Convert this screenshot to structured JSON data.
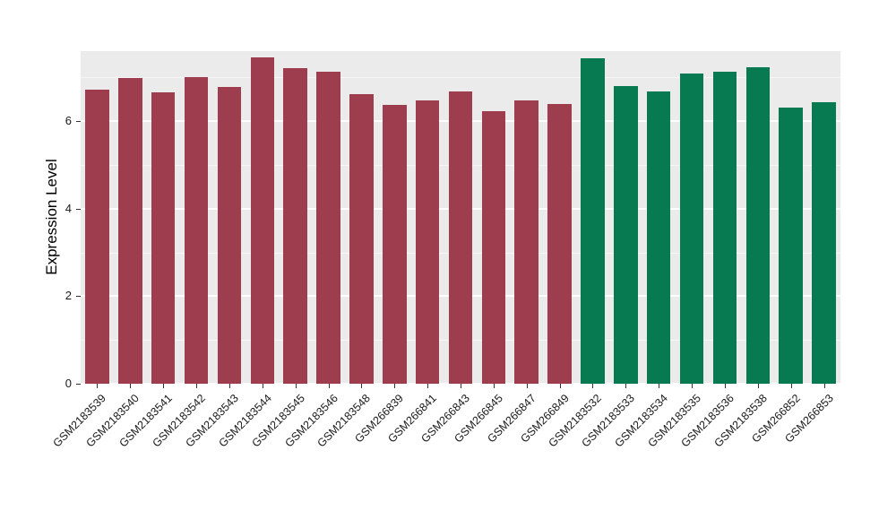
{
  "figure": {
    "background": "#FFFFFF",
    "plot_background": "#EBEBEB",
    "grid_major_color": "#FFFFFF",
    "grid_minor_color": "rgba(255,255,255,0.55)",
    "axis_text_color": "#1A1A1A",
    "tick_mark_color": "#333333",
    "red_group_color": "#9E3D4E",
    "green_group_color": "#087A52"
  },
  "chart_data": {
    "type": "bar",
    "title": "",
    "xlabel": "",
    "ylabel": "Expression Level",
    "ylim": [
      0,
      7.6
    ],
    "yticks": [
      0,
      2,
      4,
      6
    ],
    "yticks_minor": [
      1,
      3,
      5,
      7
    ],
    "grid": true,
    "legend_position": "none",
    "categories": [
      "GSM2183539",
      "GSM2183540",
      "GSM2183541",
      "GSM2183542",
      "GSM2183543",
      "GSM2183544",
      "GSM2183545",
      "GSM2183546",
      "GSM2183548",
      "GSM266839",
      "GSM266841",
      "GSM266843",
      "GSM266845",
      "GSM266847",
      "GSM266849",
      "GSM2183532",
      "GSM2183533",
      "GSM2183534",
      "GSM2183535",
      "GSM2183536",
      "GSM2183538",
      "GSM266852",
      "GSM266853"
    ],
    "values": [
      6.72,
      6.98,
      6.66,
      7.0,
      6.78,
      7.45,
      7.22,
      7.12,
      6.62,
      6.38,
      6.47,
      6.68,
      6.22,
      6.47,
      6.39,
      7.44,
      6.8,
      6.68,
      7.08,
      7.12,
      7.23,
      6.31,
      6.43
    ],
    "bar_colors": [
      "#9E3D4E",
      "#9E3D4E",
      "#9E3D4E",
      "#9E3D4E",
      "#9E3D4E",
      "#9E3D4E",
      "#9E3D4E",
      "#9E3D4E",
      "#9E3D4E",
      "#9E3D4E",
      "#9E3D4E",
      "#9E3D4E",
      "#9E3D4E",
      "#9E3D4E",
      "#9E3D4E",
      "#087A52",
      "#087A52",
      "#087A52",
      "#087A52",
      "#087A52",
      "#087A52",
      "#087A52",
      "#087A52"
    ]
  }
}
